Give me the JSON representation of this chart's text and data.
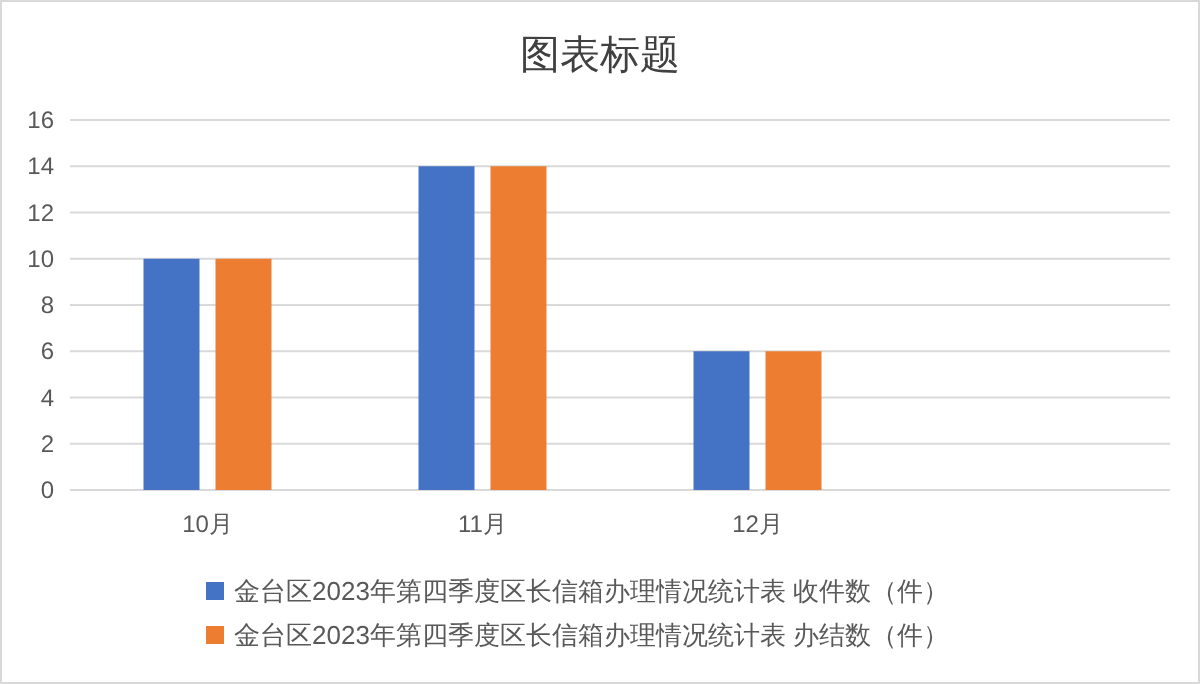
{
  "chart_data": {
    "type": "bar",
    "title": "图表标题",
    "categories": [
      "10月",
      "11月",
      "12月",
      null
    ],
    "series": [
      {
        "name": "金台区2023年第四季度区长信箱办理情况统计表 收件数（件）",
        "color": "#4472c4",
        "values": [
          10,
          14,
          6,
          null
        ]
      },
      {
        "name": "金台区2023年第四季度区长信箱办理情况统计表 办结数（件）",
        "color": "#ed7d31",
        "values": [
          10,
          14,
          6,
          null
        ]
      }
    ],
    "ylim": [
      0,
      16
    ],
    "yticks": [
      0,
      2,
      4,
      6,
      8,
      10,
      12,
      14,
      16
    ],
    "grid": "y",
    "legend": "bottom"
  }
}
